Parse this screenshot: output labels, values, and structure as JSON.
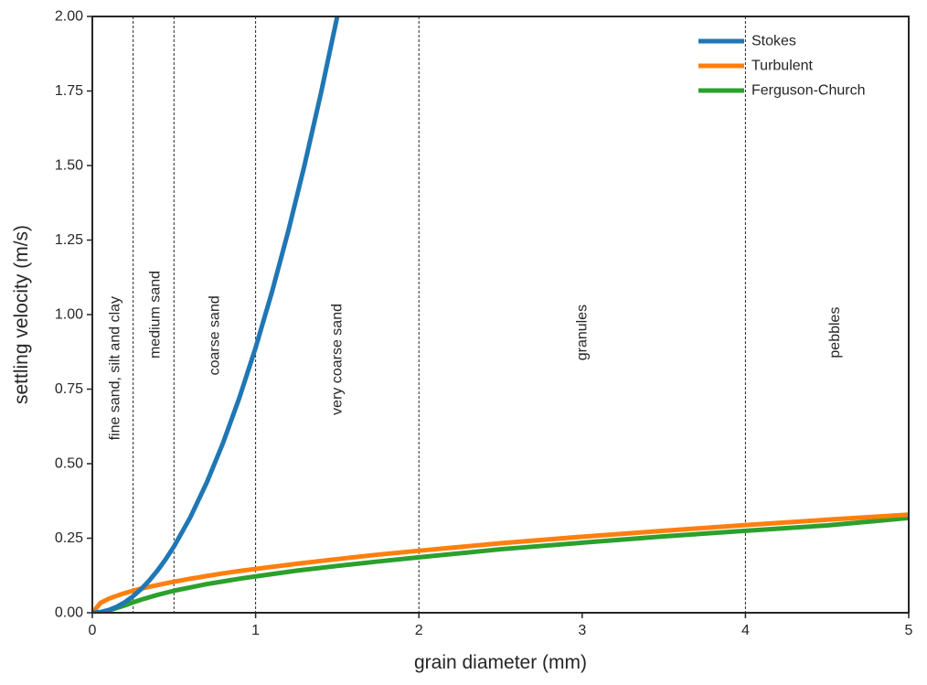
{
  "chart_data": {
    "type": "line",
    "title": "",
    "xlabel": "grain diameter (mm)",
    "ylabel": "settling velocity (m/s)",
    "xlim": [
      0,
      5
    ],
    "ylim": [
      0,
      2
    ],
    "xticks": [
      0,
      1,
      2,
      3,
      4,
      5
    ],
    "xtick_labels": [
      "0",
      "1",
      "2",
      "3",
      "4",
      "5"
    ],
    "yticks": [
      0,
      0.25,
      0.5,
      0.75,
      1.0,
      1.25,
      1.5,
      1.75,
      2.0
    ],
    "ytick_labels": [
      "0.00",
      "0.25",
      "0.50",
      "0.75",
      "1.00",
      "1.25",
      "1.50",
      "1.75",
      "2.00"
    ],
    "grid": false,
    "legend_position": "top-right",
    "series": [
      {
        "name": "Stokes",
        "color": "#1f77b4",
        "x": [
          0,
          0.05,
          0.1,
          0.15,
          0.2,
          0.25,
          0.3,
          0.35,
          0.4,
          0.45,
          0.5,
          0.6,
          0.7,
          0.8,
          0.9,
          1.0,
          1.1,
          1.2,
          1.3,
          1.4,
          1.5
        ],
        "y": [
          0,
          0.0022,
          0.0089,
          0.02,
          0.0356,
          0.0556,
          0.08,
          0.1089,
          0.1422,
          0.18,
          0.2222,
          0.32,
          0.4356,
          0.5689,
          0.72,
          0.8889,
          1.0756,
          1.28,
          1.5022,
          1.7422,
          2.0
        ]
      },
      {
        "name": "Turbulent",
        "color": "#ff7f0e",
        "x": [
          0,
          0.05,
          0.1,
          0.15,
          0.2,
          0.25,
          0.3,
          0.4,
          0.5,
          0.6,
          0.7,
          0.8,
          0.9,
          1.0,
          1.25,
          1.5,
          1.75,
          2.0,
          2.5,
          3.0,
          3.5,
          4.0,
          4.5,
          5.0
        ],
        "y": [
          0,
          0.033,
          0.047,
          0.057,
          0.066,
          0.074,
          0.081,
          0.093,
          0.104,
          0.114,
          0.123,
          0.132,
          0.14,
          0.147,
          0.164,
          0.18,
          0.195,
          0.208,
          0.233,
          0.255,
          0.275,
          0.294,
          0.312,
          0.329
        ]
      },
      {
        "name": "Ferguson-Church",
        "color": "#2ca02c",
        "x": [
          0,
          0.05,
          0.1,
          0.15,
          0.2,
          0.25,
          0.3,
          0.4,
          0.5,
          0.6,
          0.7,
          0.8,
          0.9,
          1.0,
          1.25,
          1.5,
          1.75,
          2.0,
          2.5,
          3.0,
          3.5,
          4.0,
          4.5,
          5.0
        ],
        "y": [
          0,
          0.0021,
          0.0078,
          0.016,
          0.025,
          0.035,
          0.044,
          0.06,
          0.074,
          0.085,
          0.096,
          0.105,
          0.114,
          0.122,
          0.141,
          0.157,
          0.172,
          0.186,
          0.213,
          0.235,
          0.256,
          0.275,
          0.293,
          0.318
        ]
      }
    ],
    "vlines": [
      0.25,
      0.5,
      1,
      2,
      4
    ],
    "regions": [
      {
        "label": "fine sand, silt and clay",
        "x": 0.14,
        "y": 0.82
      },
      {
        "label": "medium sand",
        "x": 0.385,
        "y": 1.0
      },
      {
        "label": "coarse sand",
        "x": 0.75,
        "y": 0.93
      },
      {
        "label": "very coarse sand",
        "x": 1.5,
        "y": 0.85
      },
      {
        "label": "granules",
        "x": 3.0,
        "y": 0.94
      },
      {
        "label": "pebbles",
        "x": 4.55,
        "y": 0.94
      }
    ]
  }
}
